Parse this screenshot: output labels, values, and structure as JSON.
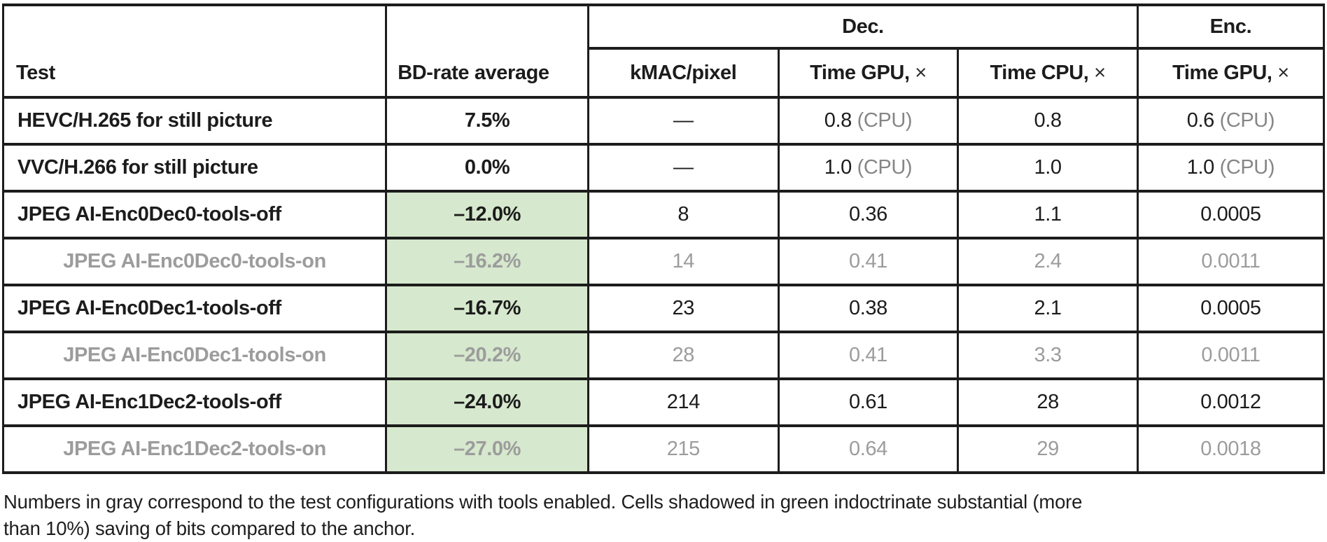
{
  "table": {
    "header": {
      "test_label": "Test",
      "bdrate_label": "BD-rate average",
      "dec_group_label": "Dec.",
      "enc_group_label": "Enc.",
      "subcolumns": [
        {
          "bold": "kMAC/pixel",
          "suffix": ""
        },
        {
          "bold": "Time GPU,",
          "suffix": "×"
        },
        {
          "bold": "Time CPU,",
          "suffix": "×"
        },
        {
          "bold": "Time GPU,",
          "suffix": "×"
        }
      ]
    },
    "rows": [
      {
        "test": "HEVC/H.265 for still picture",
        "bdrate": "7.5%",
        "green": false,
        "gray": false,
        "kmac": "—",
        "gpu": "0.8",
        "gpu_note": "(CPU)",
        "cpu": "0.8",
        "enc": "0.6",
        "enc_note": "(CPU)"
      },
      {
        "test": "VVC/H.266 for still picture",
        "bdrate": "0.0%",
        "green": false,
        "gray": false,
        "kmac": "—",
        "gpu": "1.0",
        "gpu_note": "(CPU)",
        "cpu": "1.0",
        "enc": "1.0",
        "enc_note": "(CPU)"
      },
      {
        "test": "JPEG AI-Enc0Dec0-tools-off",
        "bdrate": "–12.0%",
        "green": true,
        "gray": false,
        "kmac": "8",
        "gpu": "0.36",
        "cpu": "1.1",
        "enc": "0.0005"
      },
      {
        "test": "JPEG AI-Enc0Dec0-tools-on",
        "bdrate": "–16.2%",
        "green": true,
        "gray": true,
        "kmac": "14",
        "gpu": "0.41",
        "cpu": "2.4",
        "enc": "0.0011"
      },
      {
        "test": "JPEG AI-Enc0Dec1-tools-off",
        "bdrate": "–16.7%",
        "green": true,
        "gray": false,
        "kmac": "23",
        "gpu": "0.38",
        "cpu": "2.1",
        "enc": "0.0005"
      },
      {
        "test": "JPEG AI-Enc0Dec1-tools-on",
        "bdrate": "–20.2%",
        "green": true,
        "gray": true,
        "kmac": "28",
        "gpu": "0.41",
        "cpu": "3.3",
        "enc": "0.0011"
      },
      {
        "test": "JPEG AI-Enc1Dec2-tools-off",
        "bdrate": "–24.0%",
        "green": true,
        "gray": false,
        "kmac": "214",
        "gpu": "0.61",
        "cpu": "28",
        "enc": "0.0012"
      },
      {
        "test": "JPEG AI-Enc1Dec2-tools-on",
        "bdrate": "–27.0%",
        "green": true,
        "gray": true,
        "kmac": "215",
        "gpu": "0.64",
        "cpu": "29",
        "enc": "0.0018"
      }
    ]
  },
  "footnote": "Numbers in gray correspond to the test configurations with tools enabled. Cells shadowed in green indoctrinate substantial (more than 10%) saving of bits compared to the anchor.",
  "colors": {
    "green_highlight": "#d6e8cd",
    "gray_text": "#9c9c9c",
    "cpu_note_gray": "#868686",
    "ink": "#1c1c1c"
  }
}
